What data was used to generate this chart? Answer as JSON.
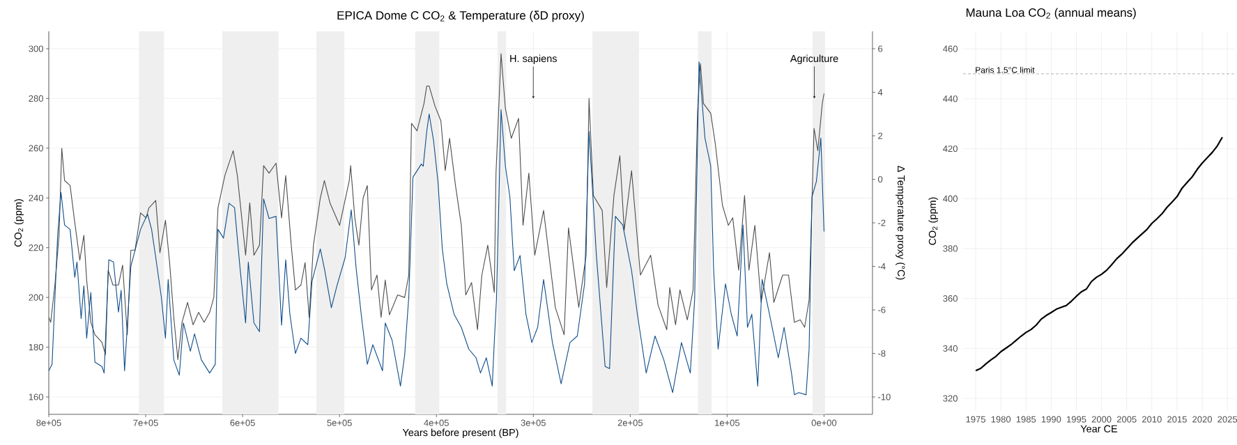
{
  "chart_data": [
    {
      "type": "line",
      "title": "EPICA Dome C CO$_{2}$ & Temperature (δD proxy)",
      "xlabel": "Years before present (BP)",
      "ylabel": "CO$_{2}$ (ppm)",
      "y2label": "Δ Temperature proxy (°C)",
      "xlim": [
        800000,
        -50000
      ],
      "ylim": [
        153,
        307
      ],
      "y2lim": [
        -10.8,
        6.8
      ],
      "xticks": [
        {
          "value": 800000,
          "label": "8e+05"
        },
        {
          "value": 700000,
          "label": "7e+05"
        },
        {
          "value": 600000,
          "label": "6e+05"
        },
        {
          "value": 500000,
          "label": "5e+05"
        },
        {
          "value": 400000,
          "label": "4e+05"
        },
        {
          "value": 300000,
          "label": "3e+05"
        },
        {
          "value": 200000,
          "label": "2e+05"
        },
        {
          "value": 100000,
          "label": "1e+05"
        },
        {
          "value": 0,
          "label": "0e+00"
        }
      ],
      "yticks": [
        160,
        180,
        200,
        220,
        240,
        260,
        280,
        300
      ],
      "y2ticks": [
        -10,
        -8,
        -6,
        -4,
        -2,
        0,
        2,
        4,
        6
      ],
      "grid": true,
      "bands": [
        {
          "axis": "x",
          "from": 707000,
          "to": 681000,
          "color": "#efefef"
        },
        {
          "axis": "x",
          "from": 621000,
          "to": 563000,
          "color": "#efefef"
        },
        {
          "axis": "x",
          "from": 524000,
          "to": 495000,
          "color": "#efefef"
        },
        {
          "axis": "x",
          "from": 422000,
          "to": 397000,
          "color": "#efefef"
        },
        {
          "axis": "x",
          "from": 337000,
          "to": 328000,
          "color": "#efefef"
        },
        {
          "axis": "x",
          "from": 239000,
          "to": 191000,
          "color": "#efefef"
        },
        {
          "axis": "x",
          "from": 130000,
          "to": 116000,
          "color": "#efefef"
        },
        {
          "axis": "x",
          "from": 12000,
          "to": -1000,
          "color": "#efefef"
        }
      ],
      "annotations": [
        {
          "text": "H. sapiens",
          "x": 300000,
          "y": 280
        },
        {
          "text": "Agriculture",
          "x": 10000,
          "y": 280
        }
      ],
      "series": [
        {
          "color": "#4d4d4d",
          "x": [
            800000,
            798000,
            793700,
            789400,
            786600,
            783700,
            778000,
            773800,
            768000,
            763800,
            760900,
            756600,
            752400,
            745200,
            741500,
            738700,
            733800,
            728100,
            723800,
            719000,
            715300,
            711000,
            705300,
            699600,
            696700,
            689600,
            685300,
            679600,
            675300,
            671000,
            666800,
            662500,
            656800,
            651100,
            645400,
            639700,
            634000,
            629700,
            625400,
            618300,
            609700,
            605400,
            596900,
            592600,
            588300,
            582600,
            578300,
            572700,
            565500,
            559800,
            555500,
            549800,
            545500,
            539800,
            535500,
            531300,
            526900,
            519800,
            515600,
            509800,
            499900,
            489900,
            488500,
            484200,
            480000,
            475600,
            471300,
            467000,
            461300,
            457100,
            452800,
            448500,
            440000,
            432800,
            428500,
            425700,
            420000,
            412800,
            410000,
            407500,
            401500,
            395400,
            390900,
            386400,
            380300,
            374300,
            369700,
            363700,
            357600,
            353100,
            347000,
            340300,
            338500,
            333300,
            328800,
            322700,
            315200,
            310600,
            304600,
            298500,
            289400,
            277300,
            268200,
            263700,
            253100,
            245500,
            242500,
            238000,
            228900,
            224300,
            216800,
            210700,
            206200,
            198600,
            189500,
            178900,
            171300,
            162300,
            159200,
            153200,
            148700,
            141100,
            135100,
            130500,
            127500,
            124400,
            116900,
            112300,
            104800,
            98700,
            94200,
            88100,
            82000,
            77500,
            71400,
            64900,
            56300,
            51800,
            42700,
            36600,
            30600,
            24500,
            20000,
            15400,
            10300,
            6400,
            1800,
            0
          ],
          "values": [
            192,
            190,
            205,
            225,
            260,
            247,
            245,
            232,
            215,
            225,
            207,
            190,
            185,
            182,
            177,
            211,
            205,
            205,
            213,
            185,
            219,
            219,
            234,
            232,
            236,
            239,
            218,
            231,
            214,
            192,
            175,
            190,
            198,
            189,
            194,
            190,
            194,
            200,
            236,
            249,
            259,
            249,
            217,
            238,
            217,
            221,
            253,
            250,
            254,
            232,
            249,
            221,
            203,
            205,
            214,
            192,
            221,
            240,
            247,
            238,
            229,
            247,
            253,
            232,
            221,
            240,
            245,
            203,
            209,
            192,
            207,
            193,
            201,
            200,
            209,
            270,
            267,
            278,
            285,
            285,
            277,
            271,
            251,
            264,
            245,
            229,
            201,
            206,
            187,
            209,
            221,
            202,
            250,
            298,
            276,
            264,
            272,
            229,
            250,
            217,
            235,
            196,
            185,
            228,
            196,
            217,
            280,
            241,
            235,
            204,
            241,
            257,
            227,
            251,
            209,
            217,
            197,
            187,
            204,
            189,
            203,
            191,
            203,
            275,
            294,
            278,
            274,
            262,
            237,
            229,
            232,
            211,
            241,
            211,
            229,
            198,
            218,
            198,
            209,
            209,
            190,
            191,
            188,
            199,
            268,
            259,
            278,
            282
          ]
        },
        {
          "color": "#0f4d8a",
          "axis": "y2",
          "x": [
            800000,
            796600,
            790900,
            787400,
            783700,
            778000,
            773200,
            770900,
            766600,
            763800,
            760900,
            756600,
            752400,
            745200,
            742900,
            738100,
            733200,
            728100,
            725300,
            721800,
            715300,
            705300,
            698100,
            693900,
            689600,
            683900,
            679600,
            676800,
            671000,
            665300,
            661100,
            653900,
            649600,
            642500,
            634000,
            628200,
            625400,
            619700,
            614000,
            608300,
            602600,
            596900,
            594100,
            588300,
            582600,
            578300,
            572700,
            565500,
            559800,
            555500,
            551200,
            545500,
            539800,
            532700,
            528400,
            519800,
            515600,
            508400,
            502700,
            494200,
            487900,
            482800,
            477100,
            471300,
            465600,
            455600,
            452800,
            445700,
            437100,
            432800,
            428500,
            424200,
            415600,
            413600,
            410000,
            407500,
            403000,
            398400,
            393900,
            389300,
            381800,
            374300,
            366600,
            359100,
            354500,
            348500,
            342400,
            340300,
            338000,
            333300,
            328800,
            324200,
            319700,
            313700,
            307600,
            301600,
            295500,
            289400,
            280300,
            271300,
            262200,
            254600,
            247100,
            242500,
            234900,
            225900,
            221300,
            215300,
            207700,
            198600,
            192600,
            183500,
            174400,
            165300,
            156200,
            147100,
            138000,
            133500,
            129000,
            122900,
            116900,
            113900,
            109300,
            101700,
            95700,
            89600,
            83600,
            79000,
            74500,
            68400,
            63900,
            56300,
            47200,
            41200,
            33600,
            30600,
            26000,
            18500,
            15400,
            12400,
            7900,
            3300,
            0
          ],
          "values": [
            -8.8,
            -8.5,
            -2.6,
            -0.6,
            -2.1,
            -2.3,
            -4.5,
            -3.8,
            -6.4,
            -4.9,
            -7.3,
            -5.2,
            -8.4,
            -8.6,
            -8.9,
            -3.7,
            -3.8,
            -6.1,
            -5.1,
            -8.8,
            -4.0,
            -2.3,
            -1.6,
            -2.3,
            -3.6,
            -5.4,
            -7.3,
            -4.6,
            -8.3,
            -9.0,
            -6.6,
            -7.9,
            -7.1,
            -8.3,
            -8.9,
            -8.5,
            -2.3,
            -2.7,
            -1.1,
            -1.3,
            -4.1,
            -6.6,
            -3.8,
            -6.6,
            -7.0,
            -0.9,
            -1.8,
            -1.7,
            -6.7,
            -3.7,
            -6.2,
            -8.0,
            -7.3,
            -7.6,
            -4.7,
            -3.2,
            -4.1,
            -5.9,
            -4.9,
            -3.6,
            -1.4,
            -4.1,
            -6.4,
            -8.5,
            -7.6,
            -8.8,
            -6.6,
            -7.4,
            -9.5,
            -8.1,
            -5.4,
            0.1,
            0.7,
            0.6,
            2.2,
            3.0,
            1.8,
            -0.1,
            -3.2,
            -4.8,
            -6.2,
            -6.8,
            -7.8,
            -8.2,
            -8.9,
            -8.2,
            -9.5,
            -7.5,
            -5.5,
            3.2,
            0.6,
            -0.8,
            -4.2,
            -3.5,
            -6.2,
            -7.5,
            -6.8,
            -4.6,
            -7.5,
            -9.4,
            -7.5,
            -7.2,
            -4.8,
            2.2,
            -3.5,
            -8.6,
            -8.7,
            -1.7,
            -2.1,
            -4.2,
            -6.2,
            -8.9,
            -7.2,
            -8.3,
            -9.8,
            -7.5,
            -8.9,
            -5.5,
            5.4,
            1.9,
            0.6,
            -4.2,
            -7.8,
            -4.8,
            -6.2,
            -7.2,
            -2.1,
            -6.8,
            -6.2,
            -9.5,
            -4.6,
            -6.2,
            -8.2,
            -6.8,
            -8.9,
            -9.9,
            -9.8,
            -9.9,
            -7.8,
            -0.8,
            -0.1,
            1.9,
            -2.4
          ]
        }
      ]
    },
    {
      "type": "line",
      "title": "Mauna Loa CO$_{2}$ (annual means)",
      "xlabel": "Year CE",
      "ylabel": "CO$_{2}$ (ppm)",
      "xlim": [
        1972.5,
        2026.5
      ],
      "ylim": [
        315,
        467
      ],
      "xticks": [
        1975,
        1980,
        1985,
        1990,
        1995,
        2000,
        2005,
        2010,
        2015,
        2020,
        2025
      ],
      "yticks": [
        320,
        340,
        360,
        380,
        400,
        420,
        440,
        460
      ],
      "grid": true,
      "ref_lines": [
        {
          "axis": "y",
          "value": 450,
          "label": "Paris 1.5°C limit",
          "color": "#555555",
          "line_style": "dashed"
        }
      ],
      "series": [
        {
          "color": "#000000",
          "x": [
            1975,
            1976,
            1977,
            1978,
            1979,
            1980,
            1981,
            1982,
            1983,
            1984,
            1985,
            1986,
            1987,
            1988,
            1989,
            1990,
            1991,
            1992,
            1993,
            1994,
            1995,
            1996,
            1997,
            1998,
            1999,
            2000,
            2001,
            2002,
            2003,
            2004,
            2005,
            2006,
            2007,
            2008,
            2009,
            2010,
            2011,
            2012,
            2013,
            2014,
            2015,
            2016,
            2017,
            2018,
            2019,
            2020,
            2021,
            2022,
            2023,
            2024
          ],
          "values": [
            331.1,
            332.0,
            333.8,
            335.4,
            336.8,
            338.7,
            340.1,
            341.5,
            343.2,
            344.9,
            346.4,
            347.6,
            349.3,
            351.7,
            353.2,
            354.4,
            355.7,
            356.5,
            357.2,
            358.9,
            360.9,
            362.7,
            363.8,
            366.8,
            368.5,
            369.7,
            371.3,
            373.5,
            375.9,
            377.7,
            379.9,
            382.1,
            384.0,
            385.8,
            387.6,
            390.1,
            391.9,
            393.9,
            396.5,
            398.6,
            400.8,
            404.2,
            406.5,
            408.7,
            411.7,
            414.2,
            416.4,
            418.5,
            421.1,
            424.6
          ]
        }
      ]
    }
  ]
}
